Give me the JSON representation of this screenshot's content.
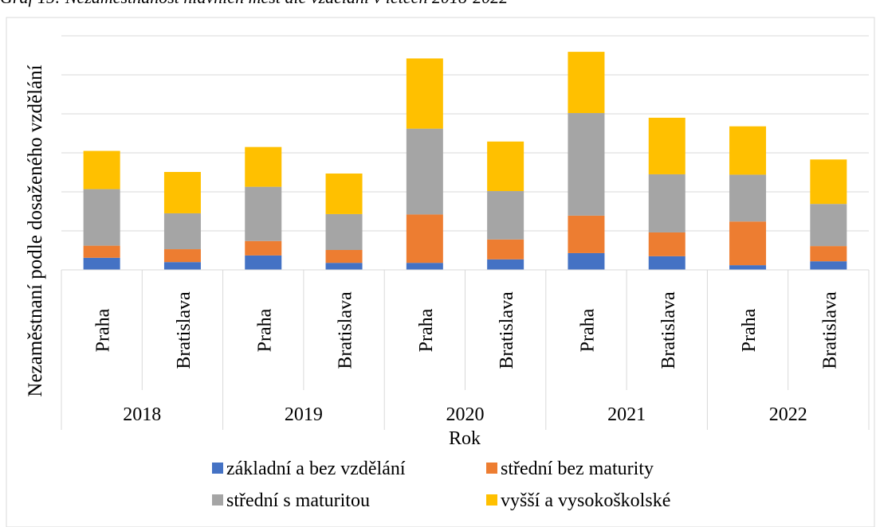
{
  "chart_data": {
    "type": "stacked_bar",
    "title": "Graf 15: Nezaměstnanost hlavních měst dle vzdělání v letech 2018-2022",
    "ylabel": "Nezaměstnaní podle  dosaženého vzdělání",
    "xlabel": "Rok",
    "categories": [
      "Praha",
      "Bratislava",
      "Praha",
      "Bratislava",
      "Praha",
      "Bratislava",
      "Praha",
      "Bratislava",
      "Praha",
      "Bratislava"
    ],
    "groups": [
      "2018",
      "2019",
      "2020",
      "2021",
      "2022"
    ],
    "series": [
      {
        "name": "základní a bez vzdělání",
        "color": "#4472c4",
        "values": [
          0.31,
          0.2,
          0.37,
          0.18,
          0.18,
          0.27,
          0.43,
          0.35,
          0.12,
          0.22
        ]
      },
      {
        "name": "střední bez maturity",
        "color": "#ed7d31",
        "values": [
          0.31,
          0.33,
          0.37,
          0.33,
          1.24,
          0.51,
          0.96,
          0.61,
          1.12,
          0.39
        ]
      },
      {
        "name": "střední s maturitou",
        "color": "#a5a5a5",
        "values": [
          1.45,
          0.92,
          1.39,
          0.92,
          2.2,
          1.24,
          2.63,
          1.49,
          1.2,
          1.08
        ]
      },
      {
        "name": "vyšší a vysokoškolské",
        "color": "#ffc000",
        "values": [
          0.98,
          1.06,
          1.02,
          1.04,
          1.8,
          1.27,
          1.57,
          1.45,
          1.24,
          1.14
        ]
      }
    ],
    "ylim": [
      0,
      6
    ],
    "yticks": [
      0,
      1,
      2,
      3,
      4,
      5,
      6
    ],
    "grid": true,
    "legend": "bottom"
  }
}
